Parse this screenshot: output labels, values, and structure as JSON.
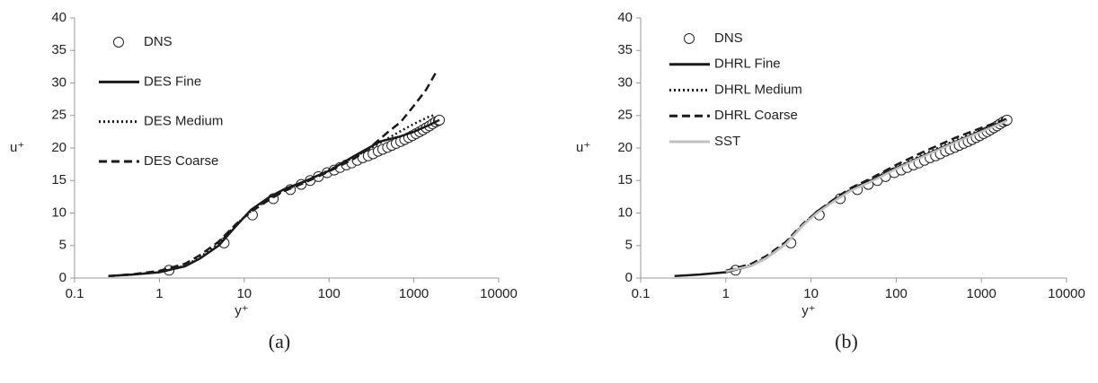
{
  "chart_data": [
    {
      "type": "line",
      "caption": "(a)",
      "xlabel": "y⁺",
      "ylabel": "u⁺",
      "xscale": "log",
      "xlim": [
        0.1,
        10000
      ],
      "xticks": [
        0.1,
        1,
        10,
        100,
        1000,
        10000
      ],
      "ylim": [
        0,
        40
      ],
      "yticks": [
        0,
        5,
        10,
        15,
        20,
        25,
        30,
        35,
        40
      ],
      "grid": false,
      "legend": "upper left",
      "series": [
        {
          "name": "DNS",
          "marker": "circle",
          "color": "#222222",
          "x": [
            1.3,
            5.8,
            12.5,
            22,
            35,
            47,
            60,
            75,
            95,
            115,
            135,
            160,
            185,
            215,
            250,
            290,
            330,
            380,
            430,
            490,
            550,
            620,
            700,
            780,
            870,
            960,
            1060,
            1170,
            1280,
            1400,
            1530,
            1660,
            1800,
            1950,
            2000
          ],
          "values": [
            1.2,
            5.4,
            9.7,
            12.2,
            13.6,
            14.4,
            15.0,
            15.6,
            16.2,
            16.6,
            17.0,
            17.4,
            17.7,
            18.1,
            18.5,
            18.8,
            19.1,
            19.5,
            19.8,
            20.1,
            20.4,
            20.7,
            21.0,
            21.3,
            21.6,
            21.9,
            22.2,
            22.5,
            22.8,
            23.1,
            23.4,
            23.7,
            24.0,
            24.2,
            24.3
          ]
        },
        {
          "name": "DES Fine",
          "style": "solid",
          "color": "#1a1a1a",
          "x": [
            0.25,
            0.5,
            1,
            2,
            3,
            5,
            8,
            12,
            20,
            30,
            50,
            100,
            200,
            400,
            700,
            1000,
            1500,
            2000
          ],
          "values": [
            0.3,
            0.55,
            0.9,
            1.8,
            3,
            5,
            8,
            10.5,
            12.5,
            13.7,
            14.8,
            16.5,
            18.8,
            21,
            21.8,
            22.5,
            23.5,
            24.3
          ]
        },
        {
          "name": "DES Medium",
          "style": "dotted",
          "color": "#1a1a1a",
          "x": [
            0.25,
            0.5,
            1,
            2,
            3,
            5,
            8,
            12,
            20,
            30,
            50,
            100,
            200,
            400,
            700,
            1000,
            1500,
            1800
          ],
          "values": [
            0.3,
            0.55,
            0.9,
            1.9,
            3.2,
            5.3,
            8.2,
            10.3,
            12.3,
            13.5,
            14.7,
            16.6,
            18.6,
            20.8,
            22.6,
            23.7,
            24.8,
            25.1
          ]
        },
        {
          "name": "DES Coarse",
          "style": "dashed",
          "color": "#1a1a1a",
          "x": [
            0.25,
            0.5,
            1,
            2,
            3,
            5,
            8,
            12,
            20,
            30,
            50,
            100,
            200,
            300,
            500,
            700,
            1000,
            1400,
            1800
          ],
          "values": [
            0.3,
            0.6,
            1.1,
            2.2,
            3.5,
            5.6,
            8.3,
            10.2,
            12.1,
            13.4,
            14.6,
            16.4,
            18.4,
            20,
            22.5,
            24,
            26.5,
            29,
            31.5
          ]
        }
      ]
    },
    {
      "type": "line",
      "caption": "(b)",
      "xlabel": "y⁺",
      "ylabel": "u⁺",
      "xscale": "log",
      "xlim": [
        0.1,
        10000
      ],
      "xticks": [
        0.1,
        1,
        10,
        100,
        1000,
        10000
      ],
      "ylim": [
        0,
        40
      ],
      "yticks": [
        0,
        5,
        10,
        15,
        20,
        25,
        30,
        35,
        40
      ],
      "grid": false,
      "legend": "upper left",
      "series": [
        {
          "name": "DNS",
          "marker": "circle",
          "color": "#222222",
          "x": [
            1.3,
            5.8,
            12.5,
            22,
            35,
            47,
            60,
            75,
            95,
            115,
            135,
            160,
            185,
            215,
            250,
            290,
            330,
            380,
            430,
            490,
            550,
            620,
            700,
            780,
            870,
            960,
            1060,
            1170,
            1280,
            1400,
            1530,
            1660,
            1800,
            1950,
            2000
          ],
          "values": [
            1.2,
            5.4,
            9.7,
            12.2,
            13.6,
            14.4,
            15.0,
            15.6,
            16.2,
            16.6,
            17.0,
            17.4,
            17.7,
            18.1,
            18.5,
            18.8,
            19.1,
            19.5,
            19.8,
            20.1,
            20.4,
            20.7,
            21.0,
            21.3,
            21.6,
            21.9,
            22.2,
            22.5,
            22.8,
            23.1,
            23.4,
            23.7,
            24.0,
            24.2,
            24.3
          ]
        },
        {
          "name": "DHRL Fine",
          "style": "solid",
          "color": "#1a1a1a",
          "x": [
            0.25,
            0.5,
            1,
            2,
            3,
            5,
            8,
            12,
            20,
            30,
            50,
            100,
            200,
            500,
            1000,
            2000
          ],
          "values": [
            0.3,
            0.55,
            0.9,
            1.9,
            3.1,
            5.2,
            8.1,
            10.2,
            12.2,
            13.6,
            14.9,
            16.9,
            18.7,
            21.0,
            22.6,
            24.3
          ]
        },
        {
          "name": "DHRL Medium",
          "style": "dotted",
          "color": "#1a1a1a",
          "x": [
            1,
            2,
            3,
            5,
            8,
            12,
            20,
            30,
            50,
            100,
            200,
            500,
            1000,
            2000
          ],
          "values": [
            1.0,
            2.0,
            3.2,
            5.3,
            8.2,
            10.3,
            12.3,
            13.7,
            15.0,
            17.0,
            18.9,
            21.2,
            22.8,
            24.4
          ]
        },
        {
          "name": "DHRL Coarse",
          "style": "dashed",
          "color": "#1a1a1a",
          "x": [
            1,
            2,
            3,
            5,
            8,
            12,
            20,
            30,
            50,
            100,
            200,
            500,
            1000,
            2000
          ],
          "values": [
            1.1,
            2.2,
            3.4,
            5.5,
            8.3,
            10.3,
            12.4,
            13.9,
            15.3,
            17.4,
            19.3,
            21.6,
            23.1,
            24.5
          ]
        },
        {
          "name": "SST",
          "style": "solid",
          "color": "#c0c0c0",
          "x": [
            1,
            2,
            3,
            5,
            8,
            12,
            20,
            30,
            50,
            100,
            200,
            500,
            1000,
            2000
          ],
          "values": [
            1.0,
            1.9,
            3.1,
            5.2,
            8.1,
            10.1,
            12.1,
            13.5,
            14.8,
            16.8,
            18.6,
            20.9,
            22.5,
            24.2
          ]
        }
      ]
    }
  ]
}
